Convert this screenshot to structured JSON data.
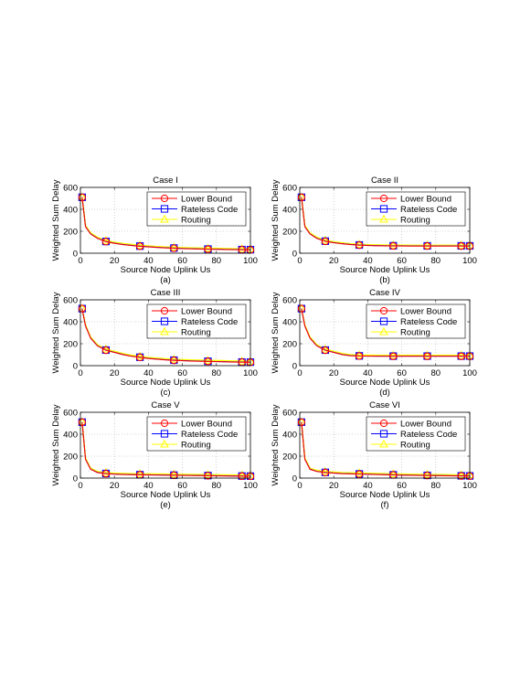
{
  "figure": {
    "panels": [
      "a",
      "b",
      "c",
      "d",
      "e",
      "f"
    ]
  },
  "series_styles": [
    {
      "key": "lower_bound",
      "color": "#ff0000",
      "marker": "circle"
    },
    {
      "key": "rateless_code",
      "color": "#0000ff",
      "marker": "square"
    },
    {
      "key": "routing",
      "color": "#ffff00",
      "marker": "triangle"
    }
  ],
  "chart_data": [
    {
      "type": "line",
      "title": "Case I",
      "panel_label": "(a)",
      "xlabel": "Source Node Uplink Us",
      "ylabel": "Weighted Sum Delay",
      "xlim": [
        0,
        100
      ],
      "ylim": [
        0,
        600
      ],
      "xticks": [
        0,
        20,
        40,
        60,
        80,
        100
      ],
      "yticks": [
        0,
        200,
        400,
        600
      ],
      "grid": true,
      "legend_position": "top-right",
      "x": [
        1,
        3,
        6,
        10,
        15,
        20,
        25,
        30,
        35,
        40,
        45,
        50,
        55,
        60,
        65,
        70,
        75,
        80,
        85,
        90,
        95,
        100
      ],
      "series": [
        {
          "name": "Lower Bound",
          "values": [
            510,
            240,
            175,
            135,
            105,
            90,
            78,
            70,
            63,
            57,
            52,
            48,
            45,
            42,
            40,
            38,
            36,
            35,
            33,
            32,
            31,
            30
          ]
        },
        {
          "name": "Rateless Code",
          "values": [
            510,
            242,
            177,
            137,
            107,
            92,
            80,
            72,
            65,
            59,
            54,
            50,
            47,
            44,
            42,
            40,
            38,
            37,
            35,
            34,
            33,
            32
          ]
        },
        {
          "name": "Routing",
          "values": [
            510,
            250,
            185,
            145,
            115,
            100,
            88,
            80,
            72,
            66,
            61,
            57,
            54,
            51,
            49,
            47,
            45,
            44,
            42,
            41,
            40,
            39
          ]
        }
      ]
    },
    {
      "type": "line",
      "title": "Case II",
      "panel_label": "(b)",
      "xlabel": "Source Node Uplink Us",
      "ylabel": "Weighted Sum Delay",
      "xlim": [
        0,
        100
      ],
      "ylim": [
        0,
        600
      ],
      "xticks": [
        0,
        20,
        40,
        60,
        80,
        100
      ],
      "yticks": [
        0,
        200,
        400,
        600
      ],
      "grid": true,
      "legend_position": "top-right",
      "x": [
        1,
        3,
        6,
        10,
        15,
        20,
        25,
        30,
        35,
        40,
        45,
        50,
        55,
        60,
        65,
        70,
        75,
        80,
        85,
        90,
        95,
        100
      ],
      "series": [
        {
          "name": "Lower Bound",
          "values": [
            510,
            240,
            175,
            135,
            108,
            95,
            85,
            78,
            73,
            70,
            68,
            67,
            66,
            66,
            65,
            65,
            65,
            65,
            65,
            65,
            65,
            65
          ]
        },
        {
          "name": "Rateless Code",
          "values": [
            510,
            242,
            177,
            137,
            110,
            97,
            87,
            80,
            75,
            72,
            70,
            69,
            68,
            68,
            67,
            67,
            67,
            67,
            67,
            67,
            67,
            67
          ]
        },
        {
          "name": "Routing",
          "values": [
            510,
            250,
            185,
            145,
            118,
            104,
            94,
            86,
            81,
            78,
            76,
            75,
            74,
            74,
            73,
            73,
            73,
            73,
            73,
            73,
            73,
            73
          ]
        }
      ]
    },
    {
      "type": "line",
      "title": "Case III",
      "panel_label": "(c)",
      "xlabel": "Source Node Uplink Us",
      "ylabel": "Weighted Sum Delay",
      "xlim": [
        0,
        100
      ],
      "ylim": [
        0,
        600
      ],
      "xticks": [
        0,
        20,
        40,
        60,
        80,
        100
      ],
      "yticks": [
        0,
        200,
        400,
        600
      ],
      "grid": true,
      "legend_position": "top-right",
      "x": [
        1,
        3,
        6,
        10,
        15,
        20,
        25,
        30,
        35,
        40,
        45,
        50,
        55,
        60,
        65,
        70,
        75,
        80,
        85,
        90,
        95,
        100
      ],
      "series": [
        {
          "name": "Lower Bound",
          "values": [
            520,
            360,
            250,
            180,
            140,
            120,
            100,
            85,
            75,
            65,
            58,
            52,
            48,
            45,
            42,
            40,
            38,
            36,
            34,
            32,
            31,
            30
          ]
        },
        {
          "name": "Rateless Code",
          "values": [
            520,
            362,
            252,
            182,
            142,
            122,
            102,
            87,
            77,
            67,
            60,
            54,
            50,
            47,
            44,
            42,
            40,
            38,
            36,
            34,
            33,
            32
          ]
        },
        {
          "name": "Routing",
          "values": [
            520,
            370,
            260,
            190,
            150,
            130,
            110,
            95,
            85,
            75,
            68,
            62,
            58,
            55,
            52,
            50,
            48,
            46,
            44,
            42,
            41,
            40
          ]
        }
      ]
    },
    {
      "type": "line",
      "title": "Case IV",
      "panel_label": "(d)",
      "xlabel": "Source Node Uplink Us",
      "ylabel": "Weighted Sum Delay",
      "xlim": [
        0,
        100
      ],
      "ylim": [
        0,
        600
      ],
      "xticks": [
        0,
        20,
        40,
        60,
        80,
        100
      ],
      "yticks": [
        0,
        200,
        400,
        600
      ],
      "grid": true,
      "legend_position": "top-right",
      "x": [
        1,
        3,
        6,
        10,
        15,
        20,
        25,
        30,
        35,
        40,
        45,
        50,
        55,
        60,
        65,
        70,
        75,
        80,
        85,
        90,
        95,
        100
      ],
      "series": [
        {
          "name": "Lower Bound",
          "values": [
            520,
            360,
            250,
            180,
            140,
            120,
            100,
            90,
            87,
            86,
            85,
            85,
            85,
            85,
            85,
            85,
            85,
            85,
            85,
            85,
            85,
            85
          ]
        },
        {
          "name": "Rateless Code",
          "values": [
            520,
            362,
            252,
            182,
            142,
            122,
            102,
            92,
            89,
            88,
            87,
            87,
            87,
            87,
            87,
            87,
            87,
            87,
            87,
            87,
            87,
            87
          ]
        },
        {
          "name": "Routing",
          "values": [
            520,
            370,
            260,
            190,
            150,
            130,
            110,
            100,
            96,
            95,
            94,
            94,
            94,
            94,
            94,
            94,
            94,
            94,
            94,
            94,
            94,
            94
          ]
        }
      ]
    },
    {
      "type": "line",
      "title": "Case V",
      "panel_label": "(e)",
      "xlabel": "Source Node Uplink Us",
      "ylabel": "Weighted Sum Delay",
      "xlim": [
        0,
        100
      ],
      "ylim": [
        0,
        600
      ],
      "xticks": [
        0,
        20,
        40,
        60,
        80,
        100
      ],
      "yticks": [
        0,
        200,
        400,
        600
      ],
      "grid": true,
      "legend_position": "top-right",
      "x": [
        1,
        3,
        6,
        10,
        15,
        20,
        25,
        30,
        35,
        40,
        45,
        50,
        55,
        60,
        65,
        70,
        75,
        80,
        85,
        90,
        95,
        100
      ],
      "series": [
        {
          "name": "Lower Bound",
          "values": [
            510,
            170,
            80,
            50,
            40,
            35,
            32,
            30,
            29,
            28,
            27,
            26,
            25,
            24,
            23,
            22,
            21,
            20,
            19,
            18,
            17,
            16
          ]
        },
        {
          "name": "Rateless Code",
          "values": [
            510,
            172,
            82,
            52,
            42,
            37,
            34,
            32,
            31,
            30,
            29,
            28,
            27,
            26,
            25,
            24,
            23,
            22,
            21,
            20,
            19,
            18
          ]
        },
        {
          "name": "Routing",
          "values": [
            510,
            180,
            90,
            60,
            50,
            45,
            42,
            40,
            39,
            38,
            37,
            36,
            35,
            34,
            33,
            32,
            31,
            30,
            29,
            28,
            27,
            26
          ]
        }
      ]
    },
    {
      "type": "line",
      "title": "Case VI",
      "panel_label": "(f)",
      "xlabel": "Source Node Uplink Us",
      "ylabel": "Weighted Sum Delay",
      "xlim": [
        0,
        100
      ],
      "ylim": [
        0,
        600
      ],
      "xticks": [
        0,
        20,
        40,
        60,
        80,
        100
      ],
      "yticks": [
        0,
        200,
        400,
        600
      ],
      "grid": true,
      "legend_position": "top-right",
      "x": [
        1,
        3,
        6,
        10,
        15,
        20,
        25,
        30,
        35,
        40,
        45,
        50,
        55,
        60,
        65,
        70,
        75,
        80,
        85,
        90,
        95,
        100
      ],
      "series": [
        {
          "name": "Lower Bound",
          "values": [
            510,
            170,
            80,
            60,
            50,
            45,
            40,
            38,
            36,
            34,
            32,
            30,
            28,
            26,
            25,
            24,
            23,
            22,
            21,
            20,
            19,
            18
          ]
        },
        {
          "name": "Rateless Code",
          "values": [
            510,
            172,
            82,
            62,
            52,
            47,
            42,
            40,
            38,
            36,
            34,
            32,
            30,
            28,
            27,
            26,
            25,
            24,
            23,
            22,
            21,
            20
          ]
        },
        {
          "name": "Routing",
          "values": [
            510,
            180,
            90,
            70,
            60,
            55,
            50,
            48,
            46,
            44,
            42,
            40,
            38,
            36,
            35,
            34,
            33,
            32,
            31,
            30,
            29,
            28
          ]
        }
      ]
    }
  ]
}
